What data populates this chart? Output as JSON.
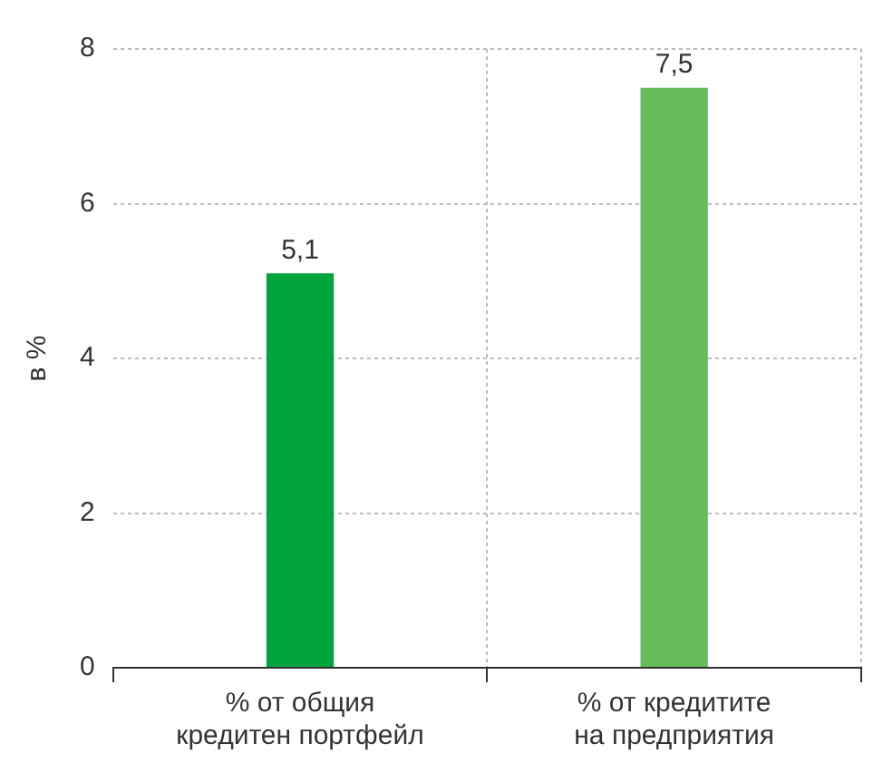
{
  "chart_data": {
    "type": "bar",
    "ylabel": "в %",
    "categories": [
      "% от общия кредитен портфейл",
      "% от кредитите на предприятия"
    ],
    "values": [
      5.1,
      7.5
    ],
    "colors": [
      "#00a33c",
      "#66bb5a"
    ],
    "value_labels": [
      "5,1",
      "7,5"
    ],
    "ylim": [
      0,
      8
    ],
    "yticks": [
      0,
      2,
      4,
      6,
      8
    ],
    "grid": true,
    "legend": false
  }
}
